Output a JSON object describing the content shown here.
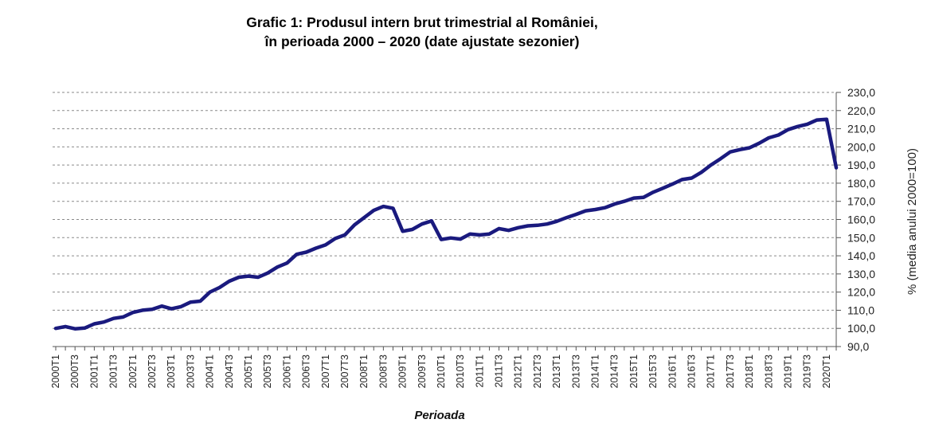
{
  "chart_data": {
    "type": "line",
    "title_line1": "Grafic 1: Produsul intern brut trimestrial al României,",
    "title_line2": "în perioada 2000 – 2020 (date ajustate sezonier)",
    "xlabel": "Perioada",
    "ylabel": "% (media anului 2000=100)",
    "ylim": [
      90,
      230
    ],
    "ytick_step": 10,
    "y_axis_position": "right",
    "grid": "horizontal-dashed",
    "series_color": "#1a1a7e",
    "x": [
      "2000T1",
      "2000T2",
      "2000T3",
      "2000T4",
      "2001T1",
      "2001T2",
      "2001T3",
      "2001T4",
      "2002T1",
      "2002T2",
      "2002T3",
      "2002T4",
      "2003T1",
      "2003T2",
      "2003T3",
      "2003T4",
      "2004T1",
      "2004T2",
      "2004T3",
      "2004T4",
      "2005T1",
      "2005T2",
      "2005T3",
      "2005T4",
      "2006T1",
      "2006T2",
      "2006T3",
      "2006T4",
      "2007T1",
      "2007T2",
      "2007T3",
      "2007T4",
      "2008T1",
      "2008T2",
      "2008T3",
      "2008T4",
      "2009T1",
      "2009T2",
      "2009T3",
      "2009T4",
      "2010T1",
      "2010T2",
      "2010T3",
      "2010T4",
      "2011T1",
      "2011T2",
      "2011T3",
      "2011T4",
      "2012T1",
      "2012T2",
      "2012T3",
      "2012T4",
      "2013T1",
      "2013T2",
      "2013T3",
      "2013T4",
      "2014T1",
      "2014T2",
      "2014T3",
      "2014T4",
      "2015T1",
      "2015T2",
      "2015T3",
      "2015T4",
      "2016T1",
      "2016T2",
      "2016T3",
      "2016T4",
      "2017T1",
      "2017T2",
      "2017T3",
      "2017T4",
      "2018T1",
      "2018T2",
      "2018T3",
      "2018T4",
      "2019T1",
      "2019T2",
      "2019T3",
      "2019T4",
      "2020T1",
      "2020T2"
    ],
    "x_tick_labels": [
      "2000T1",
      "2000T3",
      "2001T1",
      "2001T3",
      "2002T1",
      "2002T3",
      "2003T1",
      "2003T3",
      "2004T1",
      "2004T3",
      "2005T1",
      "2005T3",
      "2006T1",
      "2006T3",
      "2007T1",
      "2007T3",
      "2008T1",
      "2008T3",
      "2009T1",
      "2009T3",
      "2010T1",
      "2010T3",
      "2011T1",
      "2011T3",
      "2012T1",
      "2012T3",
      "2013T1",
      "2013T3",
      "2014T1",
      "2014T3",
      "2015T1",
      "2015T3",
      "2016T1",
      "2016T3",
      "2017T1",
      "2017T3",
      "2018T1",
      "2018T3",
      "2019T1",
      "2019T3",
      "2020T1"
    ],
    "series": [
      {
        "values": [
          100.0,
          101.0,
          99.8,
          100.2,
          102.5,
          103.5,
          105.5,
          106.3,
          108.8,
          110.0,
          110.5,
          112.3,
          110.8,
          112.0,
          114.5,
          115.0,
          120.0,
          122.5,
          126.0,
          128.2,
          128.8,
          128.2,
          130.5,
          133.8,
          136.0,
          140.8,
          142.0,
          144.2,
          146.0,
          149.5,
          151.5,
          157.0,
          161.0,
          165.0,
          167.2,
          166.2,
          153.5,
          154.5,
          157.5,
          159.2,
          149.0,
          149.8,
          149.2,
          152.0,
          151.5,
          152.0,
          155.0,
          154.0,
          155.5,
          156.5,
          156.8,
          157.5,
          159.0,
          161.0,
          162.8,
          164.8,
          165.5,
          166.5,
          168.5,
          170.0,
          171.8,
          172.2,
          175.0,
          177.2,
          179.5,
          182.0,
          182.8,
          186.0,
          190.0,
          193.5,
          197.2,
          198.5,
          199.5,
          202.0,
          205.0,
          206.5,
          209.5,
          211.2,
          212.5,
          214.8,
          215.2,
          188.5
        ]
      }
    ]
  }
}
